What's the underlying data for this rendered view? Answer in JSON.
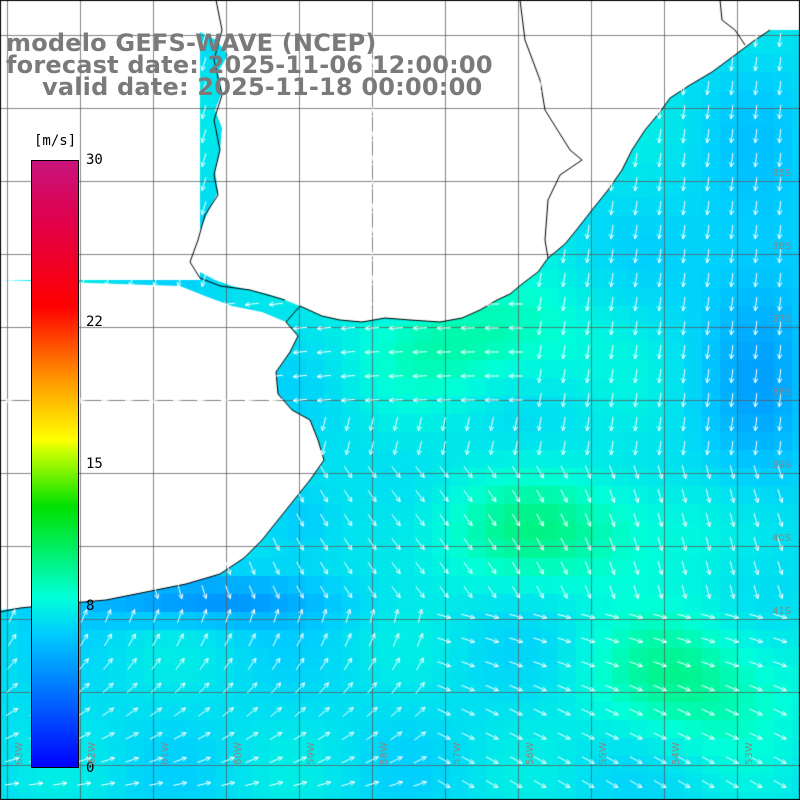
{
  "title": {
    "line1": "modelo GEFS-WAVE (NCEP)",
    "line2": "forecast date: 2025-11-06 12:00:00",
    "line3": "valid date: 2025-11-18 00:00:00"
  },
  "legend": {
    "unit": "[m/s]",
    "ticks": [
      {
        "value": 30,
        "label": "30"
      },
      {
        "value": 22,
        "label": "22"
      },
      {
        "value": 15,
        "label": "15"
      },
      {
        "value": 8,
        "label": "8"
      },
      {
        "value": 0,
        "label": "0"
      }
    ],
    "colors": [
      "#0000ff",
      "#0078ff",
      "#00cdff",
      "#00ffd8",
      "#00e000",
      "#ffff00",
      "#ff9600",
      "#ff0000",
      "#c8147d"
    ]
  },
  "map": {
    "variable": "wind speed and direction",
    "grid_lines": true,
    "land_color": "#ffffff",
    "coastline_color": "#000000",
    "arrow_color": "#ffffff",
    "lat_labels_right": [
      "35S",
      "36S",
      "37S",
      "38S",
      "39S",
      "40S",
      "41S"
    ],
    "lon_labels_bottom": [
      "63W",
      "62W",
      "61W",
      "60W",
      "59W",
      "58W",
      "57W",
      "56W",
      "55W",
      "54W",
      "53W"
    ]
  }
}
